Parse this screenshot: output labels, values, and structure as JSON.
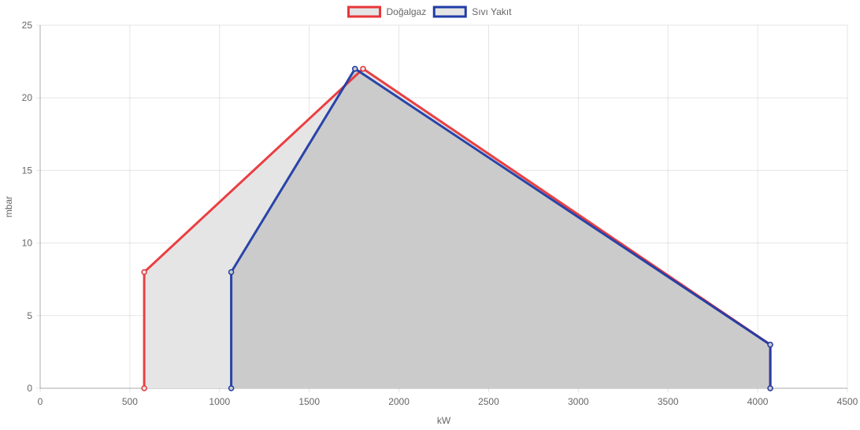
{
  "chart_data": {
    "type": "area",
    "xlabel": "kW",
    "ylabel": "mbar",
    "xlim": [
      0,
      4500
    ],
    "ylim": [
      0,
      25
    ],
    "x_ticks": [
      0,
      500,
      1000,
      1500,
      2000,
      2500,
      3000,
      3500,
      4000,
      4500
    ],
    "y_ticks": [
      0,
      5,
      10,
      15,
      20,
      25
    ],
    "grid": true,
    "legend_position": "top-center",
    "series": [
      {
        "name": "Doğalgaz",
        "color": "#e8363a",
        "fill": "#e5e5e5",
        "points": [
          [
            580,
            0
          ],
          [
            580,
            8
          ],
          [
            1800,
            22
          ],
          [
            4070,
            3
          ],
          [
            4070,
            0
          ]
        ]
      },
      {
        "name": "Sıvı Yakıt",
        "color": "#1f3ca6",
        "fill": "#cbcbcb",
        "points": [
          [
            1065,
            0
          ],
          [
            1065,
            8
          ],
          [
            1755,
            22
          ],
          [
            4070,
            3
          ],
          [
            4070,
            0
          ]
        ]
      }
    ]
  }
}
